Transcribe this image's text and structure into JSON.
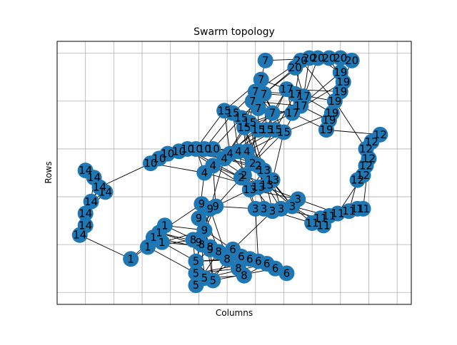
{
  "chart_data": {
    "type": "scatter",
    "title": "Swarm topology",
    "xlabel": "Columns",
    "ylabel": "Rows",
    "xlim": [
      0,
      12.5
    ],
    "ylim": [
      0,
      11
    ],
    "grid": true,
    "node_color": "#1f77b4",
    "edge_color": "#000000",
    "nodes": [
      {
        "x": 7.35,
        "y": 10.2,
        "label": "7"
      },
      {
        "x": 7.2,
        "y": 9.4,
        "label": "7"
      },
      {
        "x": 7.0,
        "y": 8.9,
        "label": "7"
      },
      {
        "x": 7.3,
        "y": 8.8,
        "label": "7"
      },
      {
        "x": 6.9,
        "y": 8.5,
        "label": "7"
      },
      {
        "x": 7.1,
        "y": 8.2,
        "label": "7"
      },
      {
        "x": 7.6,
        "y": 8.0,
        "label": "7"
      },
      {
        "x": 8.6,
        "y": 10.2,
        "label": "20"
      },
      {
        "x": 8.9,
        "y": 10.3,
        "label": "20"
      },
      {
        "x": 9.2,
        "y": 10.3,
        "label": "20"
      },
      {
        "x": 9.6,
        "y": 10.3,
        "label": "20"
      },
      {
        "x": 10.0,
        "y": 10.3,
        "label": "20"
      },
      {
        "x": 10.4,
        "y": 10.2,
        "label": "20"
      },
      {
        "x": 8.4,
        "y": 9.9,
        "label": "20"
      },
      {
        "x": 10.0,
        "y": 9.7,
        "label": "19"
      },
      {
        "x": 10.1,
        "y": 9.3,
        "label": "19"
      },
      {
        "x": 10.0,
        "y": 8.9,
        "label": "19"
      },
      {
        "x": 9.8,
        "y": 8.5,
        "label": "19"
      },
      {
        "x": 9.7,
        "y": 8.0,
        "label": "19"
      },
      {
        "x": 9.6,
        "y": 7.7,
        "label": "19"
      },
      {
        "x": 9.5,
        "y": 7.3,
        "label": "19"
      },
      {
        "x": 8.1,
        "y": 9.0,
        "label": "17"
      },
      {
        "x": 8.4,
        "y": 8.8,
        "label": "17"
      },
      {
        "x": 8.7,
        "y": 8.7,
        "label": "17"
      },
      {
        "x": 8.6,
        "y": 8.3,
        "label": "17"
      },
      {
        "x": 8.3,
        "y": 8.0,
        "label": "17"
      },
      {
        "x": 5.9,
        "y": 8.1,
        "label": "15"
      },
      {
        "x": 6.2,
        "y": 8.0,
        "label": "15"
      },
      {
        "x": 6.5,
        "y": 7.8,
        "label": "15"
      },
      {
        "x": 6.8,
        "y": 7.6,
        "label": "15"
      },
      {
        "x": 7.1,
        "y": 7.3,
        "label": "15"
      },
      {
        "x": 7.4,
        "y": 7.3,
        "label": "15"
      },
      {
        "x": 7.7,
        "y": 7.3,
        "label": "15"
      },
      {
        "x": 8.0,
        "y": 7.2,
        "label": "15"
      },
      {
        "x": 6.6,
        "y": 7.4,
        "label": "15"
      },
      {
        "x": 11.4,
        "y": 7.1,
        "label": "12"
      },
      {
        "x": 11.1,
        "y": 6.8,
        "label": "12"
      },
      {
        "x": 10.9,
        "y": 6.5,
        "label": "12"
      },
      {
        "x": 11.0,
        "y": 6.1,
        "label": "12"
      },
      {
        "x": 10.9,
        "y": 5.8,
        "label": "12"
      },
      {
        "x": 10.8,
        "y": 5.4,
        "label": "12"
      },
      {
        "x": 10.6,
        "y": 5.2,
        "label": "12"
      },
      {
        "x": 9.0,
        "y": 3.4,
        "label": "11"
      },
      {
        "x": 9.3,
        "y": 3.6,
        "label": "11"
      },
      {
        "x": 9.6,
        "y": 3.7,
        "label": "11"
      },
      {
        "x": 9.9,
        "y": 3.8,
        "label": "11"
      },
      {
        "x": 10.3,
        "y": 3.9,
        "label": "11"
      },
      {
        "x": 10.6,
        "y": 4.0,
        "label": "11"
      },
      {
        "x": 10.8,
        "y": 4.0,
        "label": "11"
      },
      {
        "x": 9.4,
        "y": 3.3,
        "label": "11"
      },
      {
        "x": 6.8,
        "y": 4.8,
        "label": "13"
      },
      {
        "x": 7.1,
        "y": 4.9,
        "label": "13"
      },
      {
        "x": 7.4,
        "y": 5.0,
        "label": "13"
      },
      {
        "x": 7.6,
        "y": 5.2,
        "label": "13"
      },
      {
        "x": 7.3,
        "y": 5.6,
        "label": "13"
      },
      {
        "x": 7.0,
        "y": 4.0,
        "label": "3"
      },
      {
        "x": 7.3,
        "y": 4.0,
        "label": "3"
      },
      {
        "x": 7.6,
        "y": 3.9,
        "label": "3"
      },
      {
        "x": 7.9,
        "y": 4.0,
        "label": "3"
      },
      {
        "x": 8.3,
        "y": 4.1,
        "label": "3"
      },
      {
        "x": 8.5,
        "y": 4.4,
        "label": "3"
      },
      {
        "x": 6.1,
        "y": 6.3,
        "label": "4"
      },
      {
        "x": 6.4,
        "y": 6.4,
        "label": "4"
      },
      {
        "x": 6.7,
        "y": 6.4,
        "label": "4"
      },
      {
        "x": 5.9,
        "y": 6.1,
        "label": "4"
      },
      {
        "x": 5.5,
        "y": 5.8,
        "label": "4"
      },
      {
        "x": 5.2,
        "y": 5.5,
        "label": "4"
      },
      {
        "x": 6.6,
        "y": 5.4,
        "label": "2"
      },
      {
        "x": 6.9,
        "y": 5.9,
        "label": "2"
      },
      {
        "x": 7.1,
        "y": 5.8,
        "label": "2"
      },
      {
        "x": 6.5,
        "y": 5.3,
        "label": "2"
      },
      {
        "x": 3.3,
        "y": 5.9,
        "label": "10"
      },
      {
        "x": 3.6,
        "y": 6.1,
        "label": "10"
      },
      {
        "x": 3.9,
        "y": 6.3,
        "label": "10"
      },
      {
        "x": 4.3,
        "y": 6.4,
        "label": "10"
      },
      {
        "x": 4.6,
        "y": 6.5,
        "label": "10"
      },
      {
        "x": 4.9,
        "y": 6.5,
        "label": "10"
      },
      {
        "x": 5.2,
        "y": 6.5,
        "label": "10"
      },
      {
        "x": 5.5,
        "y": 6.5,
        "label": "10"
      },
      {
        "x": 1.0,
        "y": 5.6,
        "label": "14"
      },
      {
        "x": 1.3,
        "y": 5.3,
        "label": "14"
      },
      {
        "x": 1.5,
        "y": 4.9,
        "label": "14"
      },
      {
        "x": 1.7,
        "y": 4.7,
        "label": "14"
      },
      {
        "x": 1.2,
        "y": 4.3,
        "label": "14"
      },
      {
        "x": 1.0,
        "y": 3.8,
        "label": "14"
      },
      {
        "x": 1.0,
        "y": 3.3,
        "label": "14"
      },
      {
        "x": 0.8,
        "y": 2.9,
        "label": "14"
      },
      {
        "x": 3.8,
        "y": 3.3,
        "label": "1"
      },
      {
        "x": 3.6,
        "y": 3.0,
        "label": "1"
      },
      {
        "x": 3.4,
        "y": 2.8,
        "label": "1"
      },
      {
        "x": 3.2,
        "y": 2.4,
        "label": "1"
      },
      {
        "x": 2.6,
        "y": 1.9,
        "label": "1"
      },
      {
        "x": 3.7,
        "y": 2.6,
        "label": "1"
      },
      {
        "x": 5.1,
        "y": 4.2,
        "label": "9"
      },
      {
        "x": 5.4,
        "y": 4.0,
        "label": "9"
      },
      {
        "x": 5.6,
        "y": 4.1,
        "label": "9"
      },
      {
        "x": 5.0,
        "y": 3.6,
        "label": "9"
      },
      {
        "x": 5.2,
        "y": 3.1,
        "label": "9"
      },
      {
        "x": 5.0,
        "y": 2.6,
        "label": "9"
      },
      {
        "x": 5.4,
        "y": 2.3,
        "label": "9"
      },
      {
        "x": 4.8,
        "y": 2.7,
        "label": "8"
      },
      {
        "x": 5.1,
        "y": 2.5,
        "label": "8"
      },
      {
        "x": 5.4,
        "y": 2.4,
        "label": "8"
      },
      {
        "x": 5.7,
        "y": 2.2,
        "label": "8"
      },
      {
        "x": 6.0,
        "y": 1.9,
        "label": "8"
      },
      {
        "x": 6.4,
        "y": 1.5,
        "label": "8"
      },
      {
        "x": 6.6,
        "y": 1.2,
        "label": "8"
      },
      {
        "x": 6.2,
        "y": 2.3,
        "label": "6"
      },
      {
        "x": 6.5,
        "y": 2.0,
        "label": "6"
      },
      {
        "x": 6.8,
        "y": 1.9,
        "label": "6"
      },
      {
        "x": 7.1,
        "y": 1.8,
        "label": "6"
      },
      {
        "x": 7.4,
        "y": 1.7,
        "label": "6"
      },
      {
        "x": 7.7,
        "y": 1.5,
        "label": "6"
      },
      {
        "x": 8.1,
        "y": 1.3,
        "label": "6"
      },
      {
        "x": 4.9,
        "y": 1.8,
        "label": "5"
      },
      {
        "x": 4.9,
        "y": 1.3,
        "label": "5"
      },
      {
        "x": 5.2,
        "y": 1.1,
        "label": "5"
      },
      {
        "x": 5.5,
        "y": 1.0,
        "label": "5"
      },
      {
        "x": 4.9,
        "y": 0.8,
        "label": "5"
      }
    ],
    "tick_labels": [],
    "legend": []
  }
}
